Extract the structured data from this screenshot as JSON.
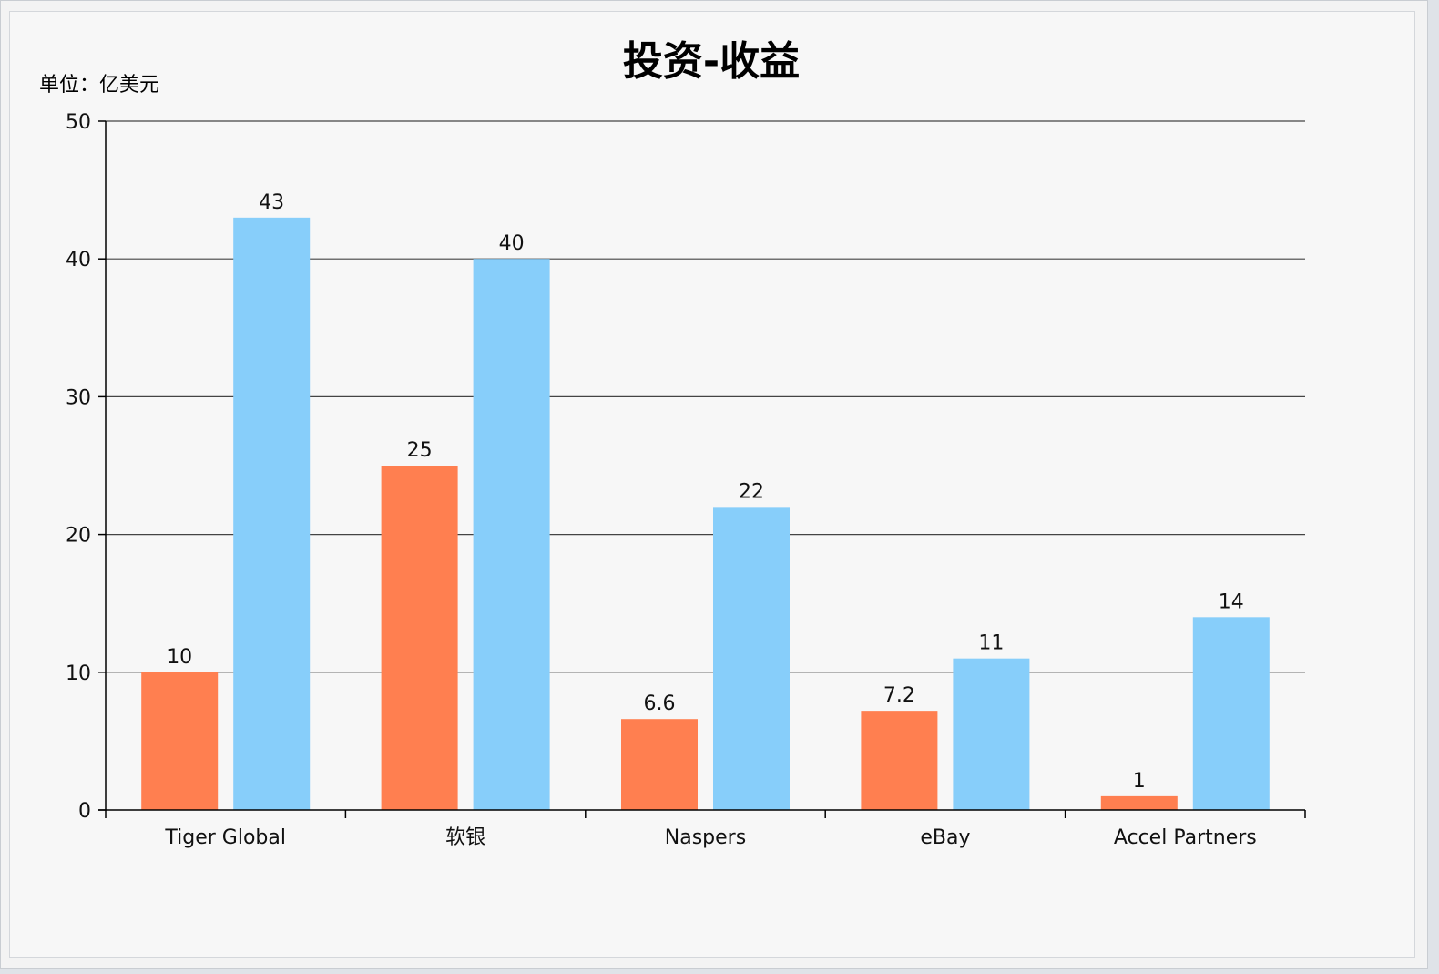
{
  "chart_data": {
    "type": "bar",
    "title": "投资-收益",
    "unit_label": "单位：亿美元",
    "categories": [
      "Tiger Global",
      "软银",
      "Naspers",
      "eBay",
      "Accel Partners"
    ],
    "series": [
      {
        "values": [
          10,
          25,
          6.6,
          7.2,
          1
        ],
        "color": "#ff7f50"
      },
      {
        "values": [
          43,
          40,
          22,
          11,
          14
        ],
        "color": "#87cefa"
      }
    ],
    "ylim": [
      0,
      50
    ],
    "yticks": [
      0,
      10,
      20,
      30,
      40,
      50
    ],
    "grid": true,
    "legend": "none"
  }
}
